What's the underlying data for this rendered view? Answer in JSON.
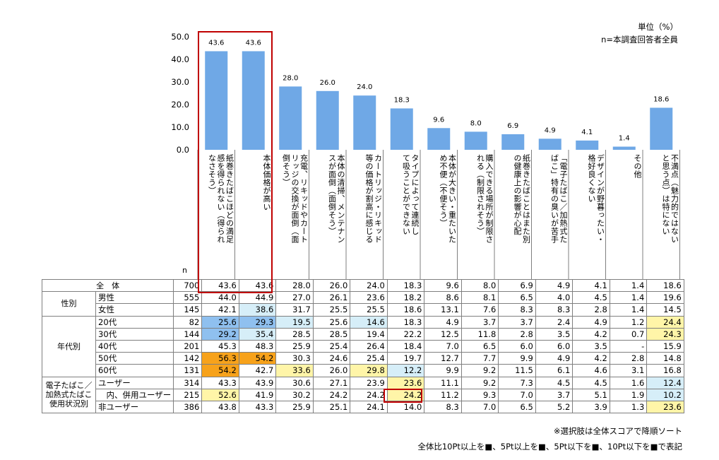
{
  "units": {
    "line1": "単位（%）",
    "line2": "n=本調査回答者全員"
  },
  "n_header": "n",
  "notes": {
    "sort": "※選択肢は全体スコアで降順ソート",
    "legend": "全体比10Pt以上を■、5Pt以上を■、5Pt以下を■、10Pt以下を■で表記"
  },
  "colors": {
    "bar": "#6fa8e6",
    "strong_up": "#f7a21b",
    "up": "#fff5a8",
    "down": "#d6eef8",
    "strong_down": "#8fc0ef",
    "highlight": "#c00000"
  },
  "chart_data": {
    "type": "bar",
    "ylim": [
      0,
      50
    ],
    "yticks": [
      "0.0",
      "10.0",
      "20.0",
      "30.0",
      "40.0",
      "50.0"
    ],
    "categories": [
      "紙巻きたばこほどの満足\n感を得られない（得られ\nなさそう）",
      "本体価格が高い",
      "充電、リキッドやカート\nリッジの交換が面倒（面\n倒そう）",
      "本体の清掃、メンテナン\nスが面倒（面倒そう）",
      "カートリッジ・リキッド\n等の価格が割高に感じる",
      "タイプによって連続し\nて吸うことができない",
      "本体が大きい・重たいた\nめ不便（不便そう）",
      "購入できる場所が制限さ\nれる（制限されそう）",
      "紙巻きたばことはまた別\nの健康上の影響が心配",
      "「電子たばこ／加熱式た\nばこ」特有の臭いが苦手",
      "デザインが野暮ったい・\n格好良くない",
      "その他",
      "不満点（魅力的ではない\nと思う点）は特にない"
    ],
    "values": [
      43.6,
      43.6,
      28.0,
      26.0,
      24.0,
      18.3,
      9.6,
      8.0,
      6.9,
      4.9,
      4.1,
      1.4,
      18.6
    ],
    "value_labels": [
      "43.6",
      "43.6",
      "28.0",
      "26.0",
      "24.0",
      "18.3",
      "9.6",
      "8.0",
      "6.9",
      "4.9",
      "4.1",
      "1.4",
      "18.6"
    ]
  },
  "table": {
    "rows": [
      {
        "group": "全　体",
        "sub": "",
        "n": "700",
        "cells": [
          "43.6",
          "43.6",
          "28.0",
          "26.0",
          "24.0",
          "18.3",
          "9.6",
          "8.0",
          "6.9",
          "4.9",
          "4.1",
          "1.4",
          "18.6"
        ],
        "hl": [
          "",
          "",
          "",
          "",
          "",
          "",
          "",
          "",
          "",
          "",
          "",
          "",
          ""
        ]
      },
      {
        "group": "性別",
        "sub": "男性",
        "n": "555",
        "cells": [
          "44.0",
          "44.9",
          "27.0",
          "26.1",
          "23.6",
          "18.2",
          "8.6",
          "8.1",
          "6.5",
          "4.0",
          "4.5",
          "1.4",
          "19.6"
        ],
        "hl": [
          "",
          "",
          "",
          "",
          "",
          "",
          "",
          "",
          "",
          "",
          "",
          "",
          ""
        ]
      },
      {
        "group": "",
        "sub": "女性",
        "n": "145",
        "cells": [
          "42.1",
          "38.6",
          "31.7",
          "25.5",
          "25.5",
          "18.6",
          "13.1",
          "7.6",
          "8.3",
          "8.3",
          "2.8",
          "1.4",
          "14.5"
        ],
        "hl": [
          "",
          "d",
          "",
          "",
          "",
          "",
          "",
          "",
          "",
          "",
          "",
          "",
          ""
        ]
      },
      {
        "group": "年代別",
        "sub": "20代",
        "n": "82",
        "cells": [
          "25.6",
          "29.3",
          "19.5",
          "25.6",
          "14.6",
          "18.3",
          "4.9",
          "3.7",
          "3.7",
          "2.4",
          "4.9",
          "1.2",
          "24.4"
        ],
        "hl": [
          "D",
          "D",
          "d",
          "",
          "d",
          "",
          "",
          "",
          "",
          "",
          "",
          "",
          "u"
        ]
      },
      {
        "group": "",
        "sub": "30代",
        "n": "144",
        "cells": [
          "29.2",
          "35.4",
          "28.5",
          "28.5",
          "19.4",
          "22.2",
          "12.5",
          "11.8",
          "2.8",
          "3.5",
          "4.2",
          "0.7",
          "24.3"
        ],
        "hl": [
          "D",
          "d",
          "",
          "",
          "",
          "",
          "",
          "",
          "",
          "",
          "",
          "",
          "u"
        ]
      },
      {
        "group": "",
        "sub": "40代",
        "n": "201",
        "cells": [
          "45.3",
          "48.3",
          "25.9",
          "25.4",
          "26.4",
          "18.4",
          "7.0",
          "6.5",
          "6.0",
          "6.0",
          "3.5",
          "-",
          "15.9"
        ],
        "hl": [
          "",
          "",
          "",
          "",
          "",
          "",
          "",
          "",
          "",
          "",
          "",
          "",
          ""
        ]
      },
      {
        "group": "",
        "sub": "50代",
        "n": "142",
        "cells": [
          "56.3",
          "54.2",
          "30.3",
          "24.6",
          "25.4",
          "19.7",
          "12.7",
          "7.7",
          "9.9",
          "4.9",
          "4.2",
          "2.8",
          "14.8"
        ],
        "hl": [
          "U",
          "U",
          "",
          "",
          "",
          "",
          "",
          "",
          "",
          "",
          "",
          "",
          ""
        ]
      },
      {
        "group": "",
        "sub": "60代",
        "n": "131",
        "cells": [
          "54.2",
          "42.7",
          "33.6",
          "26.0",
          "29.8",
          "12.2",
          "9.9",
          "9.2",
          "11.5",
          "6.1",
          "4.6",
          "3.1",
          "16.8"
        ],
        "hl": [
          "U",
          "",
          "u",
          "",
          "u",
          "d",
          "",
          "",
          "",
          "",
          "",
          "",
          ""
        ]
      },
      {
        "group": "電子たばこ／\n加熱式たばこ\n使用状況別",
        "sub": "ユーザー",
        "n": "314",
        "cells": [
          "43.3",
          "43.9",
          "30.6",
          "27.1",
          "23.9",
          "23.6",
          "11.1",
          "9.2",
          "7.3",
          "4.5",
          "4.5",
          "1.6",
          "12.4"
        ],
        "hl": [
          "",
          "",
          "",
          "",
          "",
          "u",
          "",
          "",
          "",
          "",
          "",
          "",
          "d"
        ]
      },
      {
        "group": "",
        "sub": "　内、併用ユーザー",
        "n": "215",
        "cells": [
          "52.6",
          "41.9",
          "30.2",
          "24.2",
          "24.2",
          "24.2",
          "11.2",
          "9.3",
          "7.0",
          "3.7",
          "5.1",
          "1.9",
          "10.2"
        ],
        "hl": [
          "u",
          "",
          "",
          "",
          "",
          "u",
          "",
          "",
          "",
          "",
          "",
          "",
          "d"
        ]
      },
      {
        "group": "",
        "sub": "非ユーザー",
        "n": "386",
        "cells": [
          "43.8",
          "43.3",
          "25.9",
          "25.1",
          "24.1",
          "14.0",
          "8.3",
          "7.0",
          "6.5",
          "5.2",
          "3.9",
          "1.3",
          "23.6"
        ],
        "hl": [
          "",
          "",
          "",
          "",
          "",
          "",
          "",
          "",
          "",
          "",
          "",
          "",
          "u"
        ]
      }
    ]
  }
}
